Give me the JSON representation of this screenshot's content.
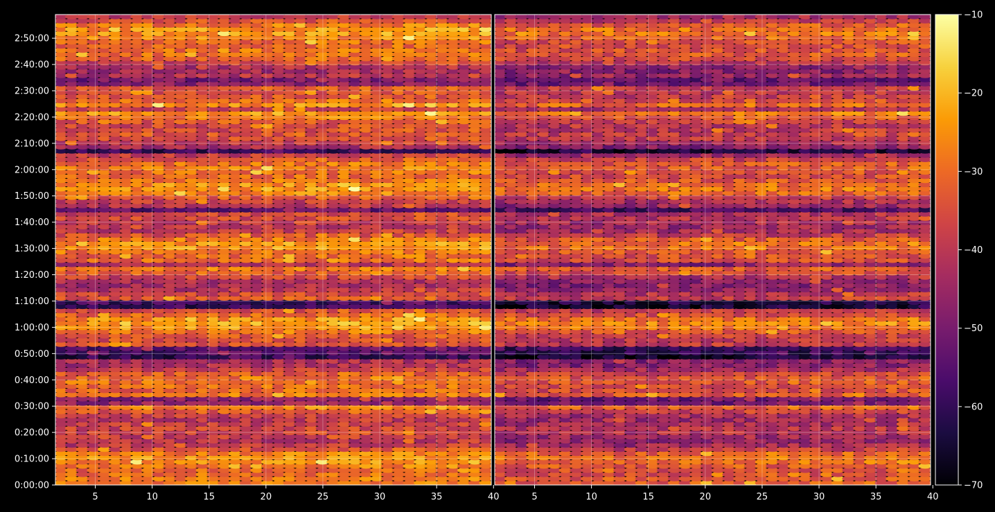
{
  "chart_data": [
    {
      "type": "heatmap",
      "panel": "left",
      "title": "",
      "xlabel": "",
      "ylabel": "",
      "xlim": [
        1.5,
        39.8
      ],
      "xticks": [
        "5",
        "10",
        "15",
        "20",
        "25",
        "30",
        "35",
        "40"
      ],
      "ylim_seconds": [
        0,
        10740
      ],
      "yticks": [
        "0:00:00",
        "0:10:00",
        "0:20:00",
        "0:30:00",
        "0:40:00",
        "0:50:00",
        "1:00:00",
        "1:10:00",
        "1:20:00",
        "1:30:00",
        "1:40:00",
        "1:50:00",
        "2:00:00",
        "2:10:00",
        "2:20:00",
        "2:30:00",
        "2:40:00",
        "2:50:00"
      ],
      "grid": true
    },
    {
      "type": "heatmap",
      "panel": "right",
      "title": "",
      "xlabel": "",
      "ylabel": "",
      "xlim": [
        1.5,
        39.8
      ],
      "xticks": [
        "5",
        "10",
        "15",
        "20",
        "25",
        "30",
        "35",
        "40"
      ],
      "grid": true
    }
  ],
  "colorbar": {
    "colormap": "inferno",
    "vmin": -70,
    "vmax": -10,
    "ticks": [
      "−10",
      "−20",
      "−30",
      "−40",
      "−50",
      "−60",
      "−70"
    ]
  },
  "colors": {
    "background": "#000000",
    "grid": "#ffffff",
    "text": "#ffffff",
    "inferno": [
      "#000004",
      "#1b0c41",
      "#4a0c6b",
      "#781c6d",
      "#a52c60",
      "#cf4446",
      "#ed6925",
      "#fb9b06",
      "#f7d13d",
      "#fcffa4"
    ]
  }
}
